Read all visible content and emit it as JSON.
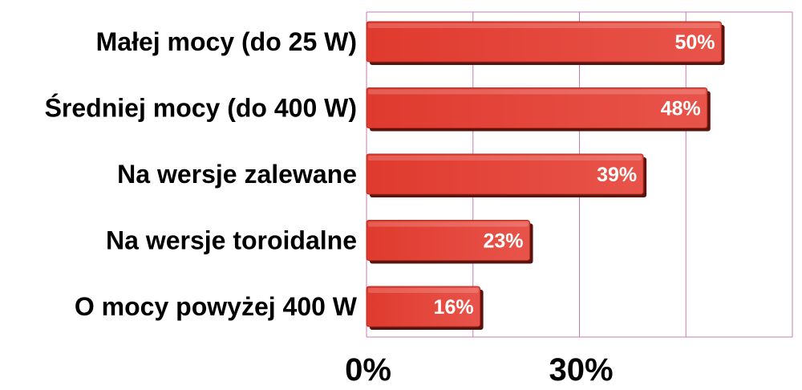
{
  "chart_data": {
    "type": "bar",
    "orientation": "horizontal",
    "categories": [
      "Małej mocy (do 25 W)",
      "Średniej mocy (do 400 W)",
      "Na wersje zalewane",
      "Na wersje toroidalne",
      "O mocy powyżej 400 W"
    ],
    "values": [
      50,
      48,
      39,
      23,
      16
    ],
    "data_labels": [
      "50%",
      "48%",
      "39%",
      "23%",
      "16%"
    ],
    "xlim": [
      0,
      60
    ],
    "x_ticks": [
      0,
      30
    ],
    "x_tick_labels": [
      "0%",
      "30%"
    ],
    "gridlines": [
      0,
      15,
      30,
      45,
      60
    ],
    "grid": true,
    "legend": "none",
    "colors": {
      "bar": "#e03a2e",
      "bar_light": "#e8544a",
      "bar_dark": "#b32a20",
      "bar_shadow": "#5a1410",
      "grid": "#c77bb5",
      "data_label": "#ffffff",
      "text": "#000000"
    }
  }
}
